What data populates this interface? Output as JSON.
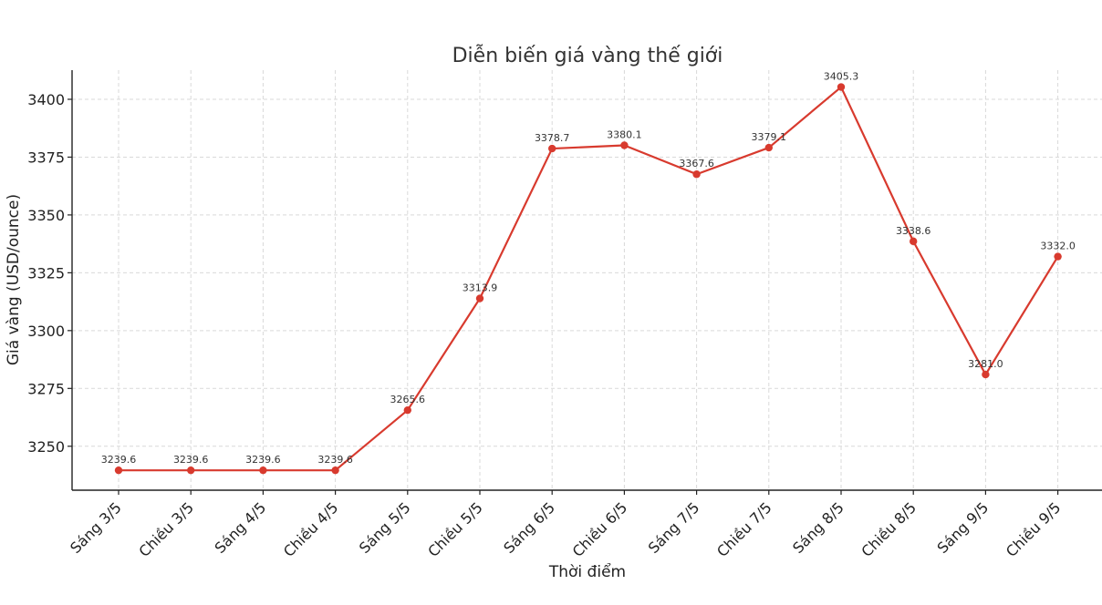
{
  "chart_data": {
    "type": "line",
    "title": "Diễn biến giá vàng thế giới",
    "xlabel": "Thời điểm",
    "ylabel": "Giá vàng (USD/ounce)",
    "categories": [
      "Sáng 3/5",
      "Chiều 3/5",
      "Sáng 4/5",
      "Chiều 4/5",
      "Sáng 5/5",
      "Chiều 5/5",
      "Sáng 6/5",
      "Chiều 6/5",
      "Sáng 7/5",
      "Chiều 7/5",
      "Sáng 8/5",
      "Chiều 8/5",
      "Sáng 9/5",
      "Chiều 9/5"
    ],
    "values": [
      3239.6,
      3239.6,
      3239.6,
      3239.6,
      3265.6,
      3313.9,
      3378.7,
      3380.1,
      3367.6,
      3379.1,
      3405.3,
      3338.6,
      3281.0,
      3332.0
    ],
    "data_labels": [
      "3239.6",
      "3239.6",
      "3239.6",
      "3239.6",
      "3265.6",
      "3313.9",
      "3378.7",
      "3380.1",
      "3367.6",
      "3379.1",
      "3405.3",
      "3338.6",
      "3281.0",
      "3332.0"
    ],
    "yticks": [
      3250,
      3275,
      3300,
      3325,
      3350,
      3375,
      3400
    ],
    "ylim": [
      3231,
      3412.6
    ],
    "grid": true,
    "color": "#d83a2e"
  }
}
